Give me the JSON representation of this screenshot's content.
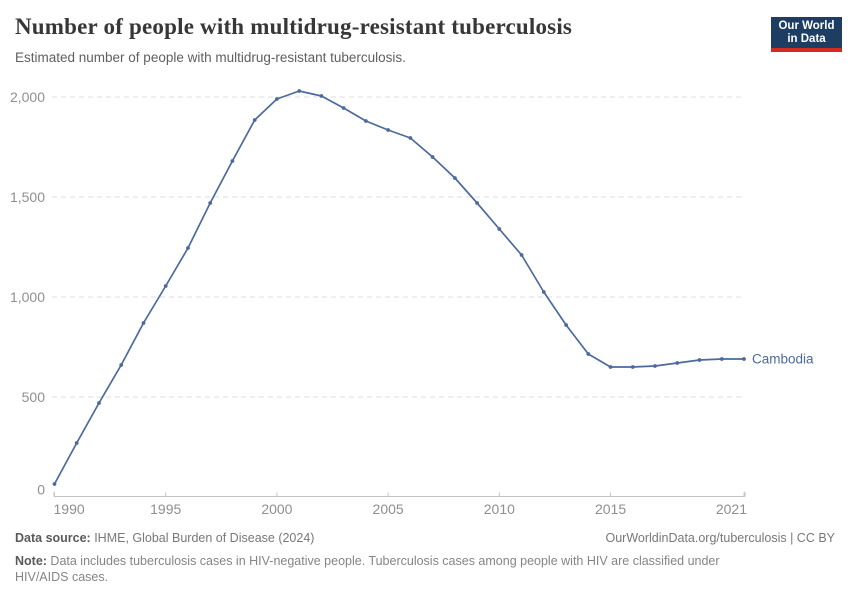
{
  "header": {
    "title": "Number of people with multidrug-resistant tuberculosis",
    "subtitle": "Estimated number of people with multidrug-resistant tuberculosis."
  },
  "logo": {
    "line1": "Our World",
    "line2": "in Data"
  },
  "chart_data": {
    "type": "line",
    "title": "Number of people with multidrug-resistant tuberculosis",
    "x": [
      1990,
      1991,
      1992,
      1993,
      1994,
      1995,
      1996,
      1997,
      1998,
      1999,
      2000,
      2001,
      2002,
      2003,
      2004,
      2005,
      2006,
      2007,
      2008,
      2009,
      2010,
      2011,
      2012,
      2013,
      2014,
      2015,
      2016,
      2017,
      2018,
      2019,
      2020,
      2021
    ],
    "series": [
      {
        "name": "Cambodia",
        "color": "#4c6a9c",
        "values": [
          65,
          270,
          470,
          660,
          870,
          1055,
          1245,
          1470,
          1680,
          1885,
          1990,
          2030,
          2005,
          1945,
          1880,
          1835,
          1795,
          1700,
          1595,
          1470,
          1340,
          1210,
          1025,
          860,
          715,
          650,
          650,
          655,
          670,
          685,
          690,
          690
        ]
      }
    ],
    "ylim": [
      0,
      2000
    ],
    "yticks": [
      0,
      500,
      1000,
      1500,
      2000
    ],
    "ytick_labels": [
      "0",
      "500",
      "1,000",
      "1,500",
      "2,000"
    ],
    "xticks": [
      1990,
      1995,
      2000,
      2005,
      2010,
      2015,
      2021
    ],
    "grid": "horizontal-dashed",
    "legend_position": "end-of-line"
  },
  "footer": {
    "source_label": "Data source:",
    "source_text": " IHME, Global Burden of Disease (2024)",
    "link": "OurWorldinData.org/tuberculosis | CC BY",
    "note_label": "Note:",
    "note_text": " Data includes tuberculosis cases in HIV-negative people. Tuberculosis cases among people with HIV are classified under HIV/AIDS cases."
  },
  "colors": {
    "line": "#4c6a9c",
    "grid": "#dedede",
    "axis": "#c4c4c4",
    "tick_label": "#8f8f8f",
    "logo_bg": "#1d3d63",
    "logo_bar": "#d42b21"
  }
}
